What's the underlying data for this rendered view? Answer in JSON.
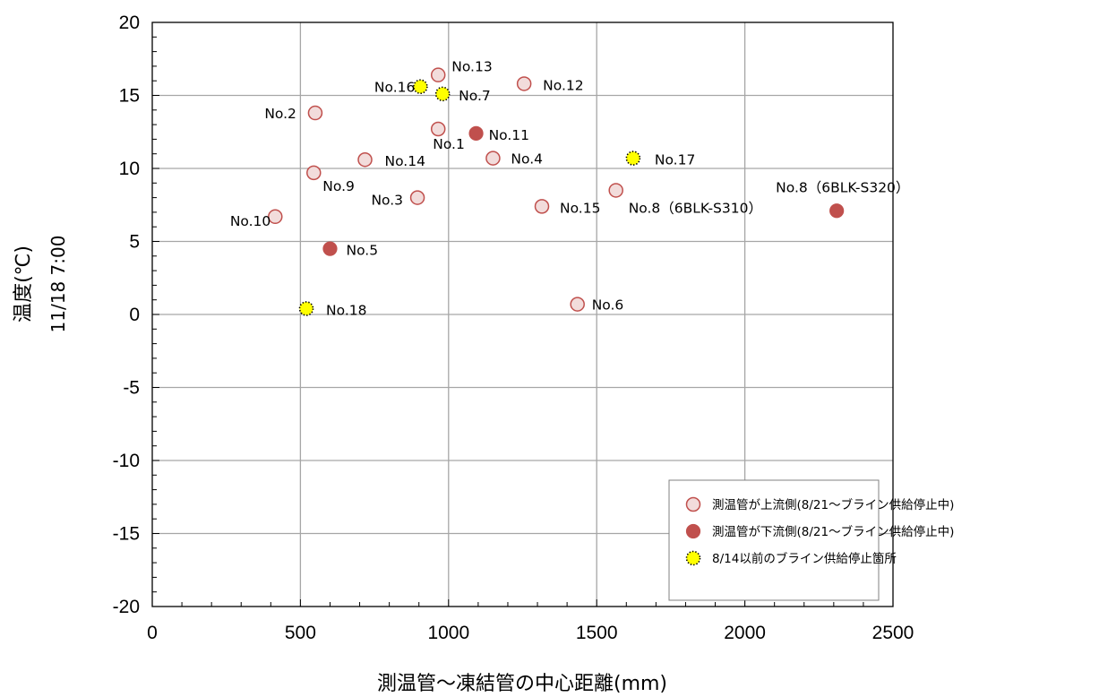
{
  "chart_data": {
    "type": "scatter",
    "xlabel": "測温管～凍結管の中心距離(mm)",
    "ylabel_line1": "温度(℃)",
    "ylabel_line2": "11/18  7:00",
    "xlim": [
      0,
      2500
    ],
    "ylim": [
      -20,
      20
    ],
    "x_ticks": [
      "0",
      "500",
      "1000",
      "1500",
      "2000",
      "2500"
    ],
    "y_ticks": [
      "20",
      "15",
      "10",
      "5",
      "0",
      "-5",
      "-10",
      "-15",
      "-20"
    ],
    "grid": true,
    "legend_position": "bottom-right",
    "series": [
      {
        "name": "測温管が上流側(8/21～ブライン供給停止中)",
        "marker": "open-circle",
        "fill": "#f2dcdb",
        "stroke": "#c0504d",
        "points": [
          {
            "label": "No.1",
            "x": 965,
            "y": 12.7
          },
          {
            "label": "No.2",
            "x": 550,
            "y": 13.8
          },
          {
            "label": "No.3",
            "x": 895,
            "y": 8.0
          },
          {
            "label": "No.4",
            "x": 1150,
            "y": 10.7
          },
          {
            "label": "No.6",
            "x": 1435,
            "y": 0.7
          },
          {
            "label": "No.8（6BLK-S310）",
            "x": 1565,
            "y": 8.5
          },
          {
            "label": "No.9",
            "x": 545,
            "y": 9.7
          },
          {
            "label": "No.10",
            "x": 415,
            "y": 6.7
          },
          {
            "label": "No.12",
            "x": 1255,
            "y": 15.8
          },
          {
            "label": "No.13",
            "x": 965,
            "y": 16.4
          },
          {
            "label": "No.14",
            "x": 718,
            "y": 10.6
          },
          {
            "label": "No.15",
            "x": 1315,
            "y": 7.4
          }
        ]
      },
      {
        "name": "測温管が下流側(8/21～ブライン供給停止中)",
        "marker": "filled-circle",
        "fill": "#c0504d",
        "stroke": "#c0504d",
        "points": [
          {
            "label": "No.5",
            "x": 600,
            "y": 4.5
          },
          {
            "label": "No.8（6BLK-S320）",
            "x": 2310,
            "y": 7.1
          },
          {
            "label": "No.11",
            "x": 1093,
            "y": 12.4
          }
        ]
      },
      {
        "name": "8/14以前のブライン供給停止箇所",
        "marker": "dotted-yellow-circle",
        "fill": "#ffff00",
        "stroke": "#000000",
        "points": [
          {
            "label": "No.7",
            "x": 980,
            "y": 15.1
          },
          {
            "label": "No.16",
            "x": 905,
            "y": 15.6
          },
          {
            "label": "No.17",
            "x": 1623,
            "y": 10.7
          },
          {
            "label": "No.18",
            "x": 520,
            "y": 0.4
          }
        ]
      }
    ]
  }
}
